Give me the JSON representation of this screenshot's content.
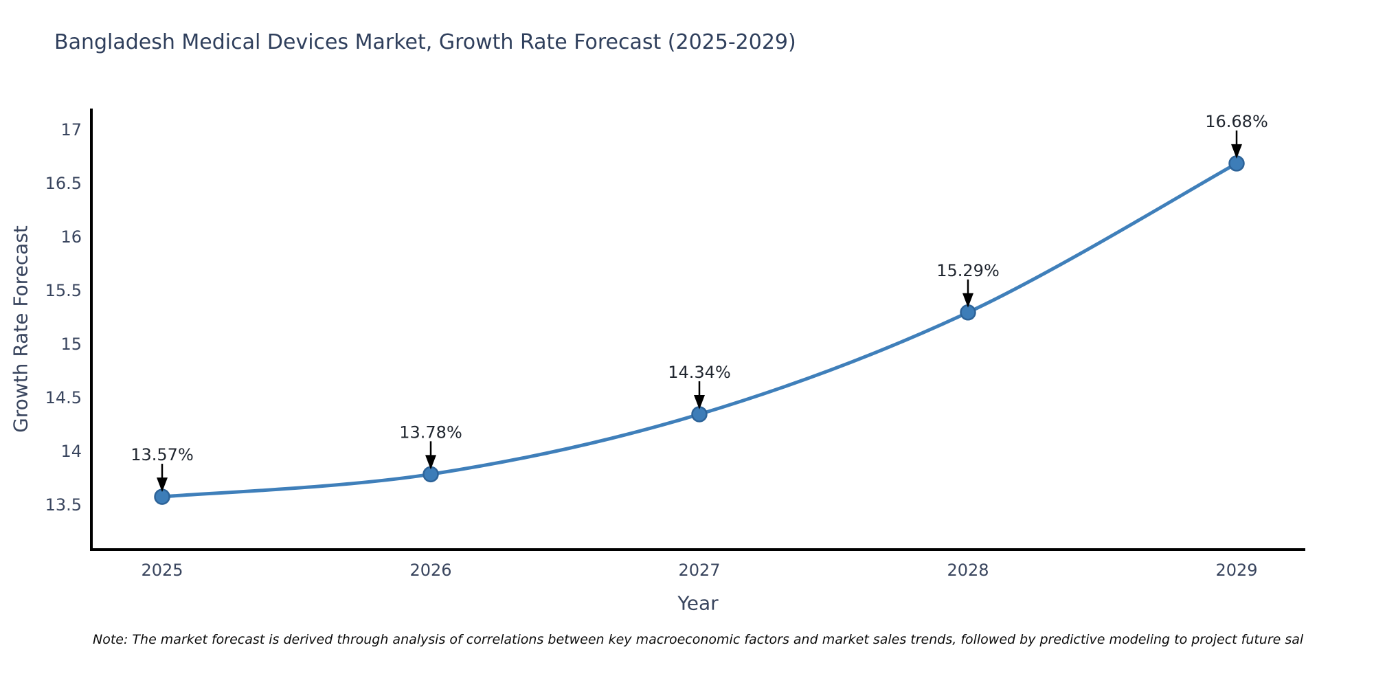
{
  "title": "Bangladesh Medical Devices Market, Growth Rate Forecast (2025-2029)",
  "note": "Note: The market forecast is derived through analysis of correlations between key macroeconomic factors and market sales trends, followed by predictive modeling to project future sal",
  "chart_data": {
    "type": "line",
    "title": "Bangladesh Medical Devices Market, Growth Rate Forecast (2025-2029)",
    "xlabel": "Year",
    "ylabel": "Growth Rate Forecast",
    "categories": [
      "2025",
      "2026",
      "2027",
      "2028",
      "2029"
    ],
    "series": [
      {
        "name": "Growth Rate Forecast",
        "values": [
          13.57,
          13.78,
          14.34,
          15.29,
          16.68
        ],
        "point_labels": [
          "13.57%",
          "13.78%",
          "14.34%",
          "15.29%",
          "16.68%"
        ]
      }
    ],
    "yticks": [
      13.5,
      14,
      14.5,
      15,
      15.5,
      16,
      16.5,
      17
    ],
    "ylim": [
      13.05,
      17.2
    ],
    "grid": false,
    "legend_position": "none",
    "line_style": "smooth",
    "colors": {
      "line": "#3f7fba",
      "marker_fill": "#3d7db8",
      "marker_edge": "#2d6398",
      "axis_spine": "#000000",
      "tick_text": "#39455e",
      "annotation_text": "#20262f",
      "arrow": "#000000"
    }
  }
}
